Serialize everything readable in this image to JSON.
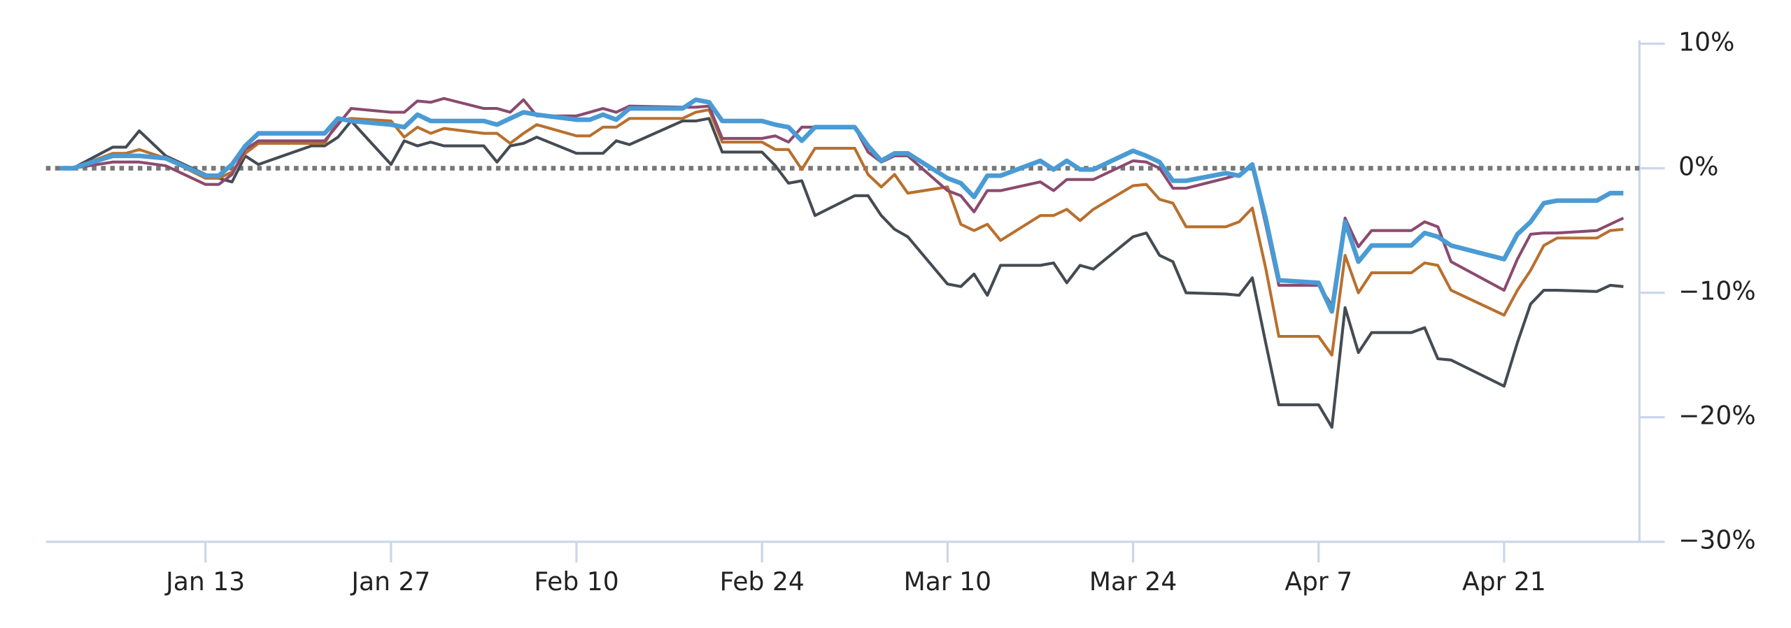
{
  "chart_data": {
    "type": "line",
    "x": [
      "Jan 2",
      "Jan 3",
      "Jan 6",
      "Jan 7",
      "Jan 8",
      "Jan 10",
      "Jan 13",
      "Jan 14",
      "Jan 15",
      "Jan 16",
      "Jan 17",
      "Jan 21",
      "Jan 22",
      "Jan 23",
      "Jan 24",
      "Jan 27",
      "Jan 28",
      "Jan 29",
      "Jan 30",
      "Jan 31",
      "Feb 3",
      "Feb 4",
      "Feb 5",
      "Feb 6",
      "Feb 7",
      "Feb 10",
      "Feb 11",
      "Feb 12",
      "Feb 13",
      "Feb 14",
      "Feb 18",
      "Feb 19",
      "Feb 20",
      "Feb 21",
      "Feb 24",
      "Feb 25",
      "Feb 26",
      "Feb 27",
      "Feb 28",
      "Mar 3",
      "Mar 4",
      "Mar 5",
      "Mar 6",
      "Mar 7",
      "Mar 10",
      "Mar 11",
      "Mar 12",
      "Mar 13",
      "Mar 14",
      "Mar 17",
      "Mar 18",
      "Mar 19",
      "Mar 20",
      "Mar 21",
      "Mar 24",
      "Mar 25",
      "Mar 26",
      "Mar 27",
      "Mar 28",
      "Mar 31",
      "Apr 1",
      "Apr 2",
      "Apr 3",
      "Apr 4",
      "Apr 7",
      "Apr 8",
      "Apr 9",
      "Apr 10",
      "Apr 11",
      "Apr 14",
      "Apr 15",
      "Apr 16",
      "Apr 17",
      "Apr 21",
      "Apr 22",
      "Apr 23",
      "Apr 24",
      "Apr 25",
      "Apr 28",
      "Apr 29",
      "Apr 30"
    ],
    "series": [
      {
        "color": "#444b52",
        "values": [
          0,
          0,
          1.7,
          1.7,
          3.0,
          1.0,
          -0.5,
          -0.8,
          -1.1,
          1.0,
          0.3,
          1.8,
          1.8,
          2.5,
          3.8,
          0.3,
          2.2,
          1.8,
          2.1,
          1.8,
          1.8,
          0.5,
          1.8,
          2.0,
          2.5,
          1.2,
          1.2,
          1.2,
          2.2,
          1.9,
          3.8,
          3.8,
          4.0,
          1.3,
          1.3,
          0.2,
          -1.2,
          -1.0,
          -3.8,
          -2.2,
          -2.2,
          -3.8,
          -4.9,
          -5.5,
          -9.3,
          -9.5,
          -8.5,
          -10.2,
          -7.8,
          -7.8,
          -7.6,
          -9.2,
          -7.8,
          -8.1,
          -5.5,
          -5.2,
          -7.0,
          -7.5,
          -10.0,
          -10.1,
          -10.2,
          -8.8,
          -14.0,
          -19.0,
          -19.0,
          -20.8,
          -11.2,
          -14.8,
          -13.2,
          -13.2,
          -12.8,
          -15.3,
          -15.4,
          -17.5,
          -14.0,
          -10.9,
          -9.8,
          -9.8,
          -9.9,
          -9.4,
          -9.5
        ]
      },
      {
        "color": "#b8702e",
        "values": [
          0,
          0,
          1.2,
          1.2,
          1.5,
          0.8,
          -0.8,
          -0.8,
          -0.3,
          1.2,
          2.0,
          2.0,
          2.0,
          3.8,
          4.0,
          3.8,
          2.5,
          3.3,
          2.8,
          3.2,
          2.8,
          2.8,
          2.0,
          2.8,
          3.5,
          2.6,
          2.6,
          3.3,
          3.3,
          4.0,
          4.0,
          4.5,
          4.7,
          2.1,
          2.1,
          1.5,
          1.5,
          -0.1,
          1.6,
          1.6,
          -0.5,
          -1.5,
          -0.5,
          -2.0,
          -1.5,
          -4.5,
          -5.0,
          -4.5,
          -5.8,
          -3.8,
          -3.8,
          -3.3,
          -4.2,
          -3.3,
          -1.4,
          -1.3,
          -2.5,
          -2.8,
          -4.7,
          -4.7,
          -4.3,
          -3.2,
          -8.0,
          -13.5,
          -13.5,
          -15.0,
          -7.0,
          -10.0,
          -8.4,
          -8.4,
          -7.6,
          -7.8,
          -9.8,
          -11.8,
          -9.8,
          -8.2,
          -6.2,
          -5.6,
          -5.6,
          -5.0,
          -4.9
        ]
      },
      {
        "color": "#8b4a6e",
        "values": [
          0,
          0,
          0.5,
          0.5,
          0.5,
          0.2,
          -1.3,
          -1.3,
          -0.5,
          1.5,
          2.2,
          2.2,
          2.2,
          3.5,
          4.8,
          4.5,
          4.5,
          5.4,
          5.3,
          5.6,
          4.8,
          4.8,
          4.5,
          5.5,
          4.2,
          4.2,
          4.5,
          4.8,
          4.5,
          5.0,
          4.9,
          4.9,
          5.0,
          2.4,
          2.4,
          2.6,
          2.1,
          3.3,
          3.3,
          3.3,
          1.3,
          0.5,
          1.0,
          1.0,
          -1.8,
          -2.2,
          -3.5,
          -1.8,
          -1.8,
          -1.1,
          -1.8,
          -0.9,
          -0.9,
          -0.9,
          0.6,
          0.5,
          0.0,
          -1.6,
          -1.6,
          -0.8,
          -0.5,
          0.2,
          -4.5,
          -9.4,
          -9.4,
          -11.0,
          -4.0,
          -6.3,
          -5.0,
          -5.0,
          -4.3,
          -4.7,
          -7.5,
          -9.8,
          -7.3,
          -5.3,
          -5.2,
          -5.2,
          -5.0,
          -4.5,
          -4.0
        ]
      },
      {
        "color": "#4a9bd4",
        "values": [
          0,
          0,
          1.0,
          1.0,
          1.0,
          0.8,
          -0.6,
          -0.6,
          0.3,
          1.8,
          2.8,
          2.8,
          2.8,
          4.0,
          3.8,
          3.5,
          3.3,
          4.3,
          3.8,
          3.8,
          3.8,
          3.5,
          4.0,
          4.5,
          4.3,
          3.9,
          3.9,
          4.3,
          3.9,
          4.8,
          4.8,
          5.5,
          5.3,
          3.8,
          3.8,
          3.5,
          3.3,
          2.2,
          3.3,
          3.3,
          1.8,
          0.6,
          1.2,
          1.2,
          -0.8,
          -1.2,
          -2.3,
          -0.6,
          -0.6,
          0.6,
          -0.1,
          0.6,
          -0.1,
          -0.1,
          1.4,
          1.0,
          0.5,
          -1.0,
          -1.0,
          -0.4,
          -0.6,
          0.3,
          -4.0,
          -9.0,
          -9.2,
          -11.5,
          -4.3,
          -7.5,
          -6.2,
          -6.2,
          -5.2,
          -5.5,
          -6.2,
          -7.3,
          -5.3,
          -4.3,
          -2.8,
          -2.6,
          -2.6,
          -2.0,
          -2.0
        ]
      }
    ],
    "xticks": [
      "Jan 13",
      "Jan 27",
      "Feb 10",
      "Feb 24",
      "Mar 10",
      "Mar 24",
      "Apr 7",
      "Apr 21"
    ],
    "ylim": [
      -30,
      10
    ],
    "yticks": [
      {
        "value": 10,
        "label": "10%"
      },
      {
        "value": 0,
        "label": "0%"
      },
      {
        "value": -10,
        "label": "−10%"
      },
      {
        "value": -20,
        "label": "−20%"
      },
      {
        "value": -30,
        "label": "−30%"
      }
    ],
    "zero_line": 0,
    "y_axis_side": "right"
  }
}
